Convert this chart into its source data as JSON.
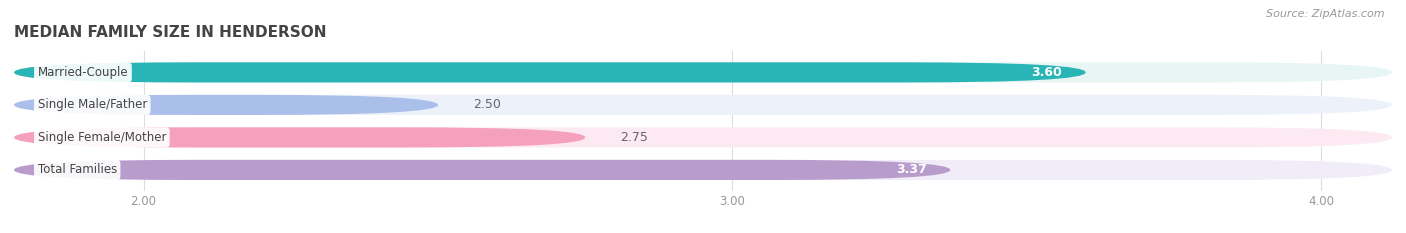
{
  "title": "MEDIAN FAMILY SIZE IN HENDERSON",
  "source": "Source: ZipAtlas.com",
  "categories": [
    "Married-Couple",
    "Single Male/Father",
    "Single Female/Mother",
    "Total Families"
  ],
  "values": [
    3.6,
    2.5,
    2.75,
    3.37
  ],
  "bar_colors": [
    "#29b5b5",
    "#aac0ea",
    "#f5a0bc",
    "#b89ccc"
  ],
  "bar_bg_colors": [
    "#e8f5f5",
    "#edf1fa",
    "#fce9f1",
    "#f0ecf8"
  ],
  "value_inside": [
    true,
    false,
    false,
    true
  ],
  "xlim_left": 1.78,
  "xlim_right": 4.12,
  "xticks": [
    2.0,
    3.0,
    4.0
  ],
  "xtick_labels": [
    "2.00",
    "3.00",
    "4.00"
  ],
  "label_inside_color": "#ffffff",
  "label_outside_color": "#666666",
  "bar_height": 0.62,
  "figsize": [
    14.06,
    2.33
  ],
  "dpi": 100,
  "bg_color": "#ffffff",
  "title_color": "#444444",
  "title_fontsize": 11,
  "source_color": "#999999",
  "grid_color": "#dddddd",
  "category_label_color": "#444444",
  "category_label_fontsize": 8.5,
  "value_fontsize": 9
}
